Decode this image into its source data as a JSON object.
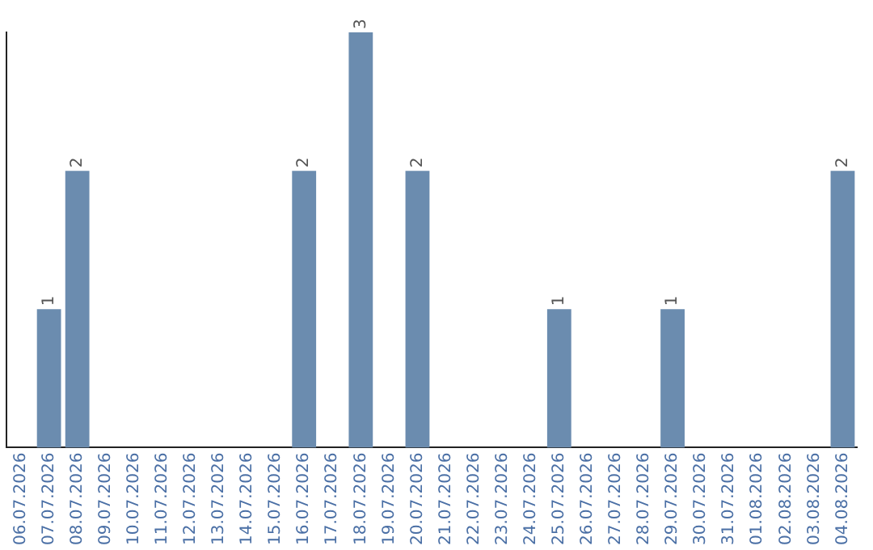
{
  "chart_data": {
    "type": "bar",
    "categories": [
      "06.07.2026",
      "07.07.2026",
      "08.07.2026",
      "09.07.2026",
      "10.07.2026",
      "11.07.2026",
      "12.07.2026",
      "13.07.2026",
      "14.07.2026",
      "15.07.2026",
      "16.07.2026",
      "17.07.2026",
      "18.07.2026",
      "19.07.2026",
      "20.07.2026",
      "21.07.2026",
      "22.07.2026",
      "23.07.2026",
      "24.07.2026",
      "25.07.2026",
      "26.07.2026",
      "27.07.2026",
      "28.07.2026",
      "29.07.2026",
      "30.07.2026",
      "31.07.2026",
      "01.08.2026",
      "02.08.2026",
      "03.08.2026",
      "04.08.2026"
    ],
    "values": [
      0,
      1,
      2,
      0,
      0,
      0,
      0,
      0,
      0,
      0,
      2,
      0,
      3,
      0,
      2,
      0,
      0,
      0,
      0,
      1,
      0,
      0,
      0,
      1,
      0,
      0,
      0,
      0,
      0,
      2
    ],
    "value_labels": [
      null,
      "1",
      "2",
      null,
      null,
      null,
      null,
      null,
      null,
      null,
      "2",
      null,
      "3",
      null,
      "2",
      null,
      null,
      null,
      null,
      "1",
      null,
      null,
      null,
      "1",
      null,
      null,
      null,
      null,
      null,
      "2"
    ],
    "color": "#6b8caf",
    "grid": false,
    "legend": false,
    "tick_labels": "x"
  }
}
